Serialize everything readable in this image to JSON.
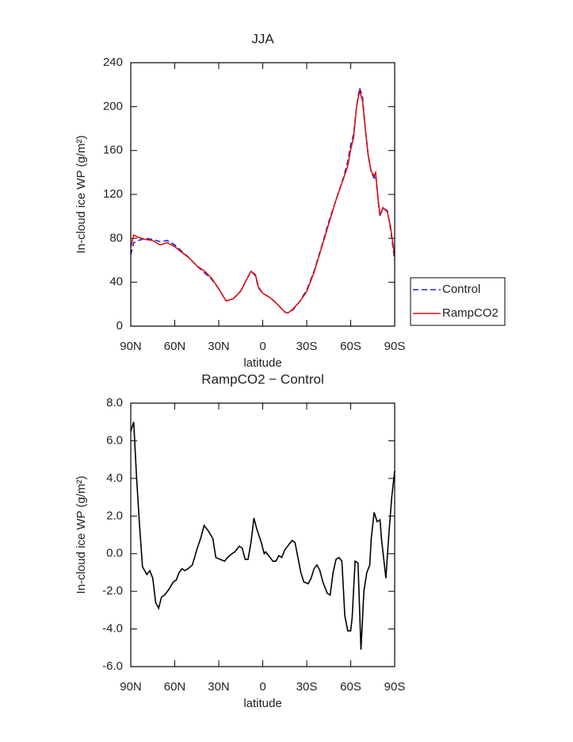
{
  "chart_data": [
    {
      "type": "line",
      "title": "JJA",
      "xlabel": "latitude",
      "ylabel": "In-cloud ice WP (g/m²)",
      "x": [
        90,
        88,
        85,
        80,
        75,
        70,
        65,
        60,
        55,
        50,
        45,
        40,
        35,
        30,
        25,
        20,
        15,
        10,
        8,
        5,
        3,
        0,
        -5,
        -10,
        -15,
        -17,
        -20,
        -25,
        -30,
        -35,
        -40,
        -45,
        -50,
        -55,
        -58,
        -60,
        -62,
        -64,
        -66,
        -68,
        -70,
        -72,
        -74,
        -76,
        -77,
        -79,
        -80,
        -82,
        -85,
        -87,
        -90
      ],
      "series": [
        {
          "name": "Control",
          "color": "#1f1fd6",
          "dashed": true,
          "values": [
            65,
            76,
            78,
            80,
            79,
            77,
            78,
            74,
            68,
            62,
            55,
            49,
            43,
            34,
            23,
            25,
            32,
            45,
            50,
            46,
            35,
            30,
            26,
            20,
            13,
            12,
            14,
            22,
            33,
            50,
            72,
            95,
            115,
            135,
            150,
            165,
            175,
            200,
            217,
            210,
            180,
            155,
            140,
            135,
            138,
            110,
            100,
            108,
            105,
            90,
            60
          ]
        },
        {
          "name": "RampCO2",
          "color": "#e01010",
          "dashed": false,
          "values": [
            72,
            83,
            81,
            79,
            78,
            74,
            76,
            72.5,
            67,
            62,
            55,
            50.5,
            44,
            34,
            23,
            25,
            32,
            45,
            50,
            47,
            36,
            30,
            26,
            20,
            13,
            12,
            14.7,
            22,
            31.5,
            49,
            71,
            93,
            115,
            134,
            146,
            161,
            172,
            200,
            214,
            206,
            179,
            155,
            141,
            137,
            140,
            112,
            101,
            108,
            104,
            92,
            64
          ]
        }
      ],
      "xlim": [
        90,
        -90
      ],
      "xticks": [
        {
          "value": 90,
          "label": "90N"
        },
        {
          "value": 60,
          "label": "60N"
        },
        {
          "value": 30,
          "label": "30N"
        },
        0,
        {
          "value": -30,
          "label": "30S"
        },
        {
          "value": -60,
          "label": "60S"
        },
        {
          "value": -90,
          "label": "90S"
        }
      ],
      "ylim": [
        0,
        240
      ],
      "yticks": [
        0,
        40,
        80,
        120,
        160,
        200,
        240
      ],
      "legend": "right"
    },
    {
      "type": "line",
      "title": "RampCO2 − Control",
      "xlabel": "latitude",
      "ylabel": "In-cloud ice WP (g/m²)",
      "x": [
        90,
        88,
        86,
        84,
        82,
        79,
        77,
        75,
        73,
        71,
        69,
        67,
        64,
        61,
        59,
        57,
        55,
        53,
        51,
        48,
        45,
        42,
        40,
        37,
        34,
        32,
        29,
        26,
        24,
        21,
        19,
        16,
        14,
        12,
        10,
        8,
        6,
        4,
        1,
        -1,
        -2,
        -5,
        -7,
        -9,
        -11,
        -13,
        -15,
        -18,
        -20,
        -22,
        -24,
        -26,
        -28,
        -31,
        -33,
        -35,
        -37,
        -39,
        -41,
        -44,
        -46,
        -48,
        -50,
        -52,
        -54,
        -56,
        -58,
        -60,
        -61,
        -63,
        -65,
        -67,
        -69,
        -71,
        -73,
        -74,
        -76,
        -78,
        -80,
        -81,
        -84,
        -86,
        -88,
        -90
      ],
      "color": "#000000",
      "values": [
        6.5,
        7.0,
        4.0,
        1.5,
        -0.7,
        -1.1,
        -0.9,
        -1.3,
        -2.6,
        -2.9,
        -2.3,
        -2.2,
        -1.9,
        -1.5,
        -1.4,
        -1.0,
        -0.8,
        -0.9,
        -0.8,
        -0.6,
        0.2,
        0.9,
        1.5,
        1.2,
        0.8,
        -0.2,
        -0.3,
        -0.4,
        -0.2,
        0.0,
        0.1,
        0.4,
        0.3,
        -0.3,
        -0.3,
        0.6,
        1.9,
        1.3,
        0.6,
        0.0,
        0.1,
        -0.2,
        -0.4,
        -0.4,
        -0.1,
        -0.2,
        0.2,
        0.5,
        0.7,
        0.6,
        -0.2,
        -1.0,
        -1.5,
        -1.6,
        -1.3,
        -0.8,
        -0.6,
        -0.9,
        -1.5,
        -2.1,
        -2.2,
        -1.0,
        -0.3,
        -0.2,
        -0.4,
        -3.3,
        -4.1,
        -4.1,
        -3.4,
        -0.4,
        -0.5,
        -5.1,
        -2.0,
        -1.0,
        -0.6,
        0.8,
        2.2,
        1.7,
        1.8,
        0.8,
        -1.3,
        1.0,
        3.0,
        4.4
      ],
      "xlim": [
        90,
        -90
      ],
      "xticks": [
        {
          "value": 90,
          "label": "90N"
        },
        {
          "value": 60,
          "label": "60N"
        },
        {
          "value": 30,
          "label": "30N"
        },
        0,
        {
          "value": -30,
          "label": "30S"
        },
        {
          "value": -60,
          "label": "60S"
        },
        {
          "value": -90,
          "label": "90S"
        }
      ],
      "ylim": [
        -6,
        8
      ],
      "yticks": [
        {
          "value": -6,
          "label": "-6.0"
        },
        {
          "value": -4,
          "label": "-4.0"
        },
        {
          "value": -2,
          "label": "-2.0"
        },
        {
          "value": 0,
          "label": "0.0"
        },
        {
          "value": 2,
          "label": "2.0"
        },
        {
          "value": 4,
          "label": "4.0"
        },
        {
          "value": 6,
          "label": "6.0"
        },
        {
          "value": 8,
          "label": "8.0"
        }
      ]
    }
  ]
}
